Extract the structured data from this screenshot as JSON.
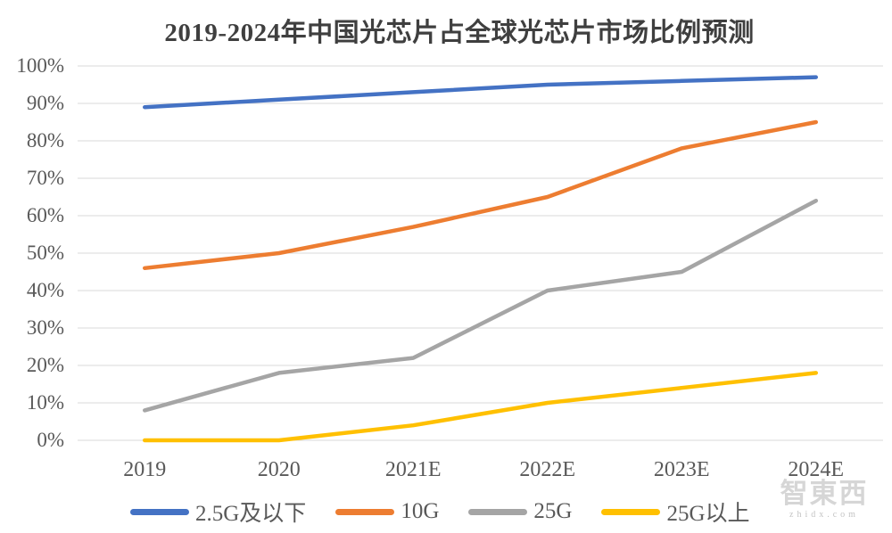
{
  "chart_data": {
    "type": "line",
    "title": "2019-2024年中国光芯片占全球光芯片市场比例预测",
    "categories": [
      "2019",
      "2020",
      "2021E",
      "2022E",
      "2023E",
      "2024E"
    ],
    "series": [
      {
        "name": "2.5G及以下",
        "color": "#4472C4",
        "values": [
          89,
          91,
          93,
          95,
          96,
          97
        ]
      },
      {
        "name": "10G",
        "color": "#ED7D31",
        "values": [
          46,
          50,
          57,
          65,
          78,
          85
        ]
      },
      {
        "name": "25G",
        "color": "#A5A5A5",
        "values": [
          8,
          18,
          22,
          40,
          45,
          64
        ]
      },
      {
        "name": "25G以上",
        "color": "#FFC000",
        "values": [
          0,
          0,
          4,
          10,
          14,
          18
        ]
      }
    ],
    "y_ticks": [
      "0%",
      "10%",
      "20%",
      "30%",
      "40%",
      "50%",
      "60%",
      "70%",
      "80%",
      "90%",
      "100%"
    ],
    "ylim": [
      0,
      100
    ],
    "grid": "horizontal",
    "legend_position": "bottom",
    "gridline_color": "#D9D9D9",
    "tick_label_color": "#595959",
    "title_color": "#3f3f3f"
  },
  "watermark": {
    "logo_text": "智東西",
    "domain_text": "zhidx.com"
  }
}
